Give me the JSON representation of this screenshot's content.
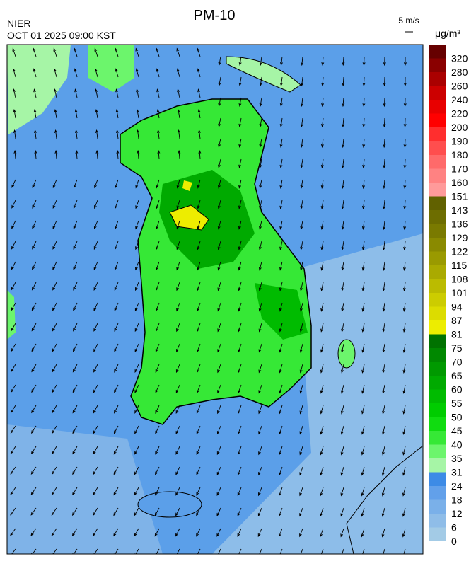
{
  "header": {
    "title": "PM-10",
    "agency": "NIER",
    "datetime": "OCT 01 2025 09:00 KST",
    "wind_scale": "5 m/s"
  },
  "legend": {
    "unit": "μg/m³",
    "bins": [
      {
        "value": 0,
        "color": "#a3cbe6"
      },
      {
        "value": 6,
        "color": "#8fbde8"
      },
      {
        "value": 12,
        "color": "#7ab0e9"
      },
      {
        "value": 18,
        "color": "#62a0ea"
      },
      {
        "value": 24,
        "color": "#3d8be6"
      },
      {
        "value": 31,
        "color": "#a6f5a6"
      },
      {
        "value": 35,
        "color": "#6cf56c"
      },
      {
        "value": 40,
        "color": "#36e836"
      },
      {
        "value": 45,
        "color": "#10dc10"
      },
      {
        "value": 50,
        "color": "#00cc00"
      },
      {
        "value": 55,
        "color": "#00bb00"
      },
      {
        "value": 60,
        "color": "#00aa00"
      },
      {
        "value": 65,
        "color": "#009900"
      },
      {
        "value": 70,
        "color": "#008800"
      },
      {
        "value": 75,
        "color": "#007200"
      },
      {
        "value": 81,
        "color": "#eded00"
      },
      {
        "value": 87,
        "color": "#dcdc00"
      },
      {
        "value": 94,
        "color": "#cccc00"
      },
      {
        "value": 101,
        "color": "#bbbb00"
      },
      {
        "value": 108,
        "color": "#aaaa00"
      },
      {
        "value": 115,
        "color": "#9a9a00"
      },
      {
        "value": 122,
        "color": "#8a8a00"
      },
      {
        "value": 129,
        "color": "#7a7a00"
      },
      {
        "value": 136,
        "color": "#6d6d00"
      },
      {
        "value": 143,
        "color": "#616100"
      },
      {
        "value": 151,
        "color": "#ff9a9a"
      },
      {
        "value": 160,
        "color": "#ff8282"
      },
      {
        "value": 170,
        "color": "#ff6a6a"
      },
      {
        "value": 180,
        "color": "#ff4e4e"
      },
      {
        "value": 190,
        "color": "#ff2e2e"
      },
      {
        "value": 200,
        "color": "#ff0000"
      },
      {
        "value": 220,
        "color": "#e80000"
      },
      {
        "value": 240,
        "color": "#cc0000"
      },
      {
        "value": 260,
        "color": "#aa0000"
      },
      {
        "value": 280,
        "color": "#8a0000"
      },
      {
        "value": 320,
        "color": "#660000"
      }
    ]
  }
}
